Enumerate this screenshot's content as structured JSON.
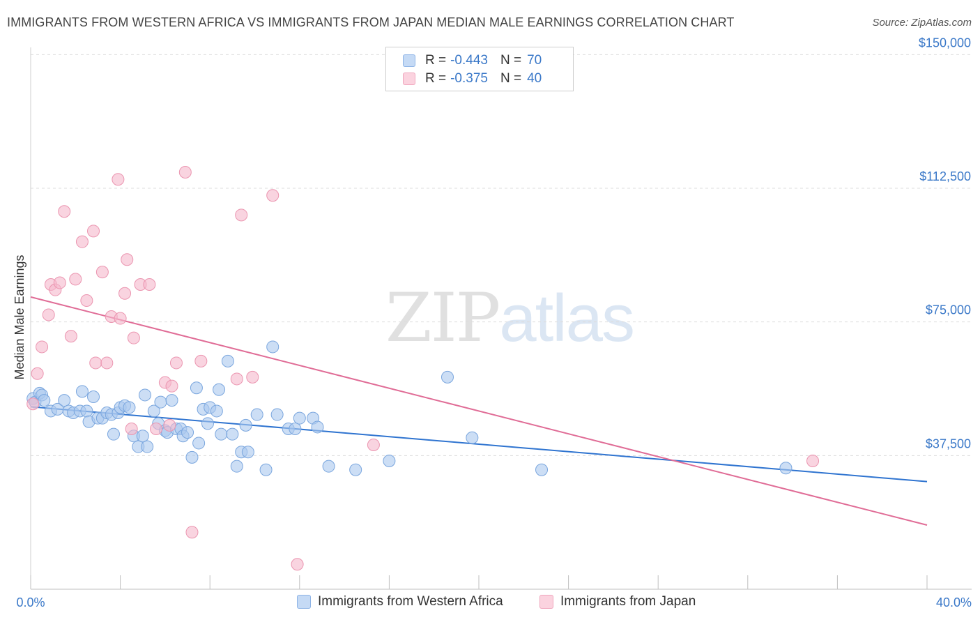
{
  "header": {
    "title": "IMMIGRANTS FROM WESTERN AFRICA VS IMMIGRANTS FROM JAPAN MEDIAN MALE EARNINGS CORRELATION CHART",
    "source": "Source: ZipAtlas.com"
  },
  "watermark": {
    "zip": "ZIP",
    "atlas": "atlas"
  },
  "legend": {
    "r_label": "R =",
    "n_label": "N =",
    "rows": [
      {
        "r": "-0.443",
        "n": "70",
        "color": "#aac8ef"
      },
      {
        "r": "-0.375",
        "n": "40",
        "color": "#f5b8cb"
      }
    ]
  },
  "colors": {
    "blue_fill": "#aac8ef",
    "blue_stroke": "#7aa6de",
    "blue_line": "#2f74d0",
    "pink_fill": "#f5b8cb",
    "pink_stroke": "#eb95b0",
    "pink_line": "#e06c96",
    "tick_label": "#3a78c8"
  },
  "chart_data": {
    "type": "scatter",
    "title": "IMMIGRANTS FROM WESTERN AFRICA VS IMMIGRANTS FROM JAPAN MEDIAN MALE EARNINGS CORRELATION CHART",
    "xlabel": "",
    "ylabel": "Median Male Earnings",
    "xlim": [
      0,
      40
    ],
    "ylim": [
      0,
      155000
    ],
    "x_tick_labels": [
      "0.0%",
      "40.0%"
    ],
    "y_ticks": [
      37500,
      75000,
      112500,
      150000
    ],
    "y_tick_labels": [
      "$37,500",
      "$75,000",
      "$112,500",
      "$150,000"
    ],
    "grid": true,
    "legend_position": "top-center",
    "series": [
      {
        "name": "Immigrants from Western Africa",
        "color": "#aac8ef",
        "trend": {
          "x": [
            0,
            40
          ],
          "y": [
            51200,
            30200
          ]
        },
        "points": [
          [
            0.1,
            53500
          ],
          [
            0.2,
            52500
          ],
          [
            0.4,
            55000
          ],
          [
            0.5,
            54500
          ],
          [
            0.6,
            53000
          ],
          [
            0.9,
            50000
          ],
          [
            1.2,
            50500
          ],
          [
            1.5,
            53000
          ],
          [
            1.7,
            50000
          ],
          [
            1.9,
            49500
          ],
          [
            2.2,
            50000
          ],
          [
            2.3,
            55500
          ],
          [
            2.5,
            50000
          ],
          [
            2.6,
            47000
          ],
          [
            2.8,
            54000
          ],
          [
            3.0,
            48000
          ],
          [
            3.2,
            48000
          ],
          [
            3.4,
            49500
          ],
          [
            3.6,
            49000
          ],
          [
            3.7,
            43500
          ],
          [
            3.9,
            49500
          ],
          [
            4.0,
            51000
          ],
          [
            4.2,
            51500
          ],
          [
            4.4,
            51000
          ],
          [
            4.6,
            43000
          ],
          [
            4.8,
            40000
          ],
          [
            5.0,
            43000
          ],
          [
            5.1,
            54500
          ],
          [
            5.2,
            40000
          ],
          [
            5.5,
            50000
          ],
          [
            5.7,
            46500
          ],
          [
            5.8,
            52500
          ],
          [
            6.0,
            44500
          ],
          [
            6.1,
            44000
          ],
          [
            6.3,
            53000
          ],
          [
            6.5,
            45000
          ],
          [
            6.7,
            45000
          ],
          [
            6.8,
            43000
          ],
          [
            7.0,
            44000
          ],
          [
            7.2,
            37000
          ],
          [
            7.4,
            56500
          ],
          [
            7.5,
            41000
          ],
          [
            7.7,
            50500
          ],
          [
            7.9,
            46500
          ],
          [
            8.0,
            51000
          ],
          [
            8.3,
            50000
          ],
          [
            8.4,
            56000
          ],
          [
            8.5,
            43500
          ],
          [
            8.8,
            64000
          ],
          [
            9.0,
            43500
          ],
          [
            9.2,
            34500
          ],
          [
            9.4,
            38500
          ],
          [
            9.6,
            46000
          ],
          [
            9.7,
            38500
          ],
          [
            10.1,
            49000
          ],
          [
            10.5,
            33500
          ],
          [
            10.8,
            68000
          ],
          [
            11.0,
            49000
          ],
          [
            11.5,
            45000
          ],
          [
            11.8,
            45000
          ],
          [
            12.0,
            48000
          ],
          [
            12.6,
            48000
          ],
          [
            12.8,
            45500
          ],
          [
            13.3,
            34500
          ],
          [
            14.5,
            33500
          ],
          [
            16.0,
            36000
          ],
          [
            18.6,
            59500
          ],
          [
            19.7,
            42500
          ],
          [
            22.8,
            33500
          ],
          [
            33.7,
            34000
          ]
        ]
      },
      {
        "name": "Immigrants from Japan",
        "color": "#f5b8cb",
        "trend": {
          "x": [
            0,
            40
          ],
          "y": [
            82000,
            18000
          ]
        },
        "points": [
          [
            0.1,
            52000
          ],
          [
            0.3,
            60500
          ],
          [
            0.5,
            68000
          ],
          [
            0.8,
            77000
          ],
          [
            0.9,
            85500
          ],
          [
            1.1,
            84000
          ],
          [
            1.3,
            86000
          ],
          [
            1.5,
            106000
          ],
          [
            1.8,
            71000
          ],
          [
            2.0,
            87000
          ],
          [
            2.3,
            97500
          ],
          [
            2.5,
            81000
          ],
          [
            2.8,
            100500
          ],
          [
            2.9,
            63500
          ],
          [
            3.2,
            89000
          ],
          [
            3.4,
            63500
          ],
          [
            3.6,
            76500
          ],
          [
            3.9,
            115000
          ],
          [
            4.0,
            76000
          ],
          [
            4.2,
            83000
          ],
          [
            4.3,
            92500
          ],
          [
            4.6,
            70500
          ],
          [
            4.9,
            85500
          ],
          [
            5.3,
            85500
          ],
          [
            5.6,
            45000
          ],
          [
            6.0,
            58000
          ],
          [
            6.3,
            57000
          ],
          [
            6.5,
            63500
          ],
          [
            6.9,
            117000
          ],
          [
            7.2,
            16000
          ],
          [
            7.6,
            64000
          ],
          [
            9.2,
            59000
          ],
          [
            9.4,
            105000
          ],
          [
            9.9,
            59500
          ],
          [
            10.8,
            110500
          ],
          [
            11.9,
            7000
          ],
          [
            15.3,
            40500
          ],
          [
            34.9,
            36000
          ],
          [
            4.5,
            45000
          ],
          [
            6.2,
            46000
          ]
        ]
      }
    ]
  }
}
